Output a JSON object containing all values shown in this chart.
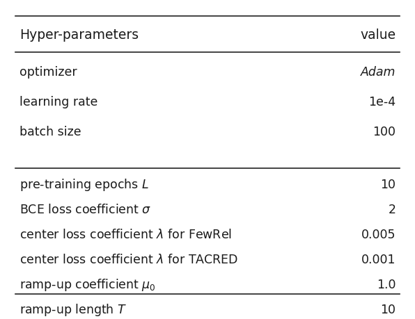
{
  "header": [
    "Hyper-parameters",
    "value"
  ],
  "group1": [
    [
      "optimizer",
      "Adam",
      true
    ],
    [
      "learning rate",
      "1e-4",
      false
    ],
    [
      "batch size",
      "100",
      false
    ]
  ],
  "group2": [
    [
      "pre-training epochs $L$",
      "10",
      false
    ],
    [
      "BCE loss coefficient $\\sigma$",
      "2",
      false
    ],
    [
      "center loss coefficient $\\lambda$ for FewRel",
      "0.005",
      false
    ],
    [
      "center loss coefficient $\\lambda$ for TACRED",
      "0.001",
      false
    ],
    [
      "ramp-up coefficient $\\mu_0$",
      "1.0",
      false
    ],
    [
      "ramp-up length $T$",
      "10",
      false
    ]
  ],
  "bg_color": "#ffffff",
  "text_color": "#1a1a1a",
  "line_color": "#222222",
  "header_fontsize": 13.5,
  "body_fontsize": 12.5,
  "fig_width": 5.96,
  "fig_height": 4.6,
  "dpi": 100
}
